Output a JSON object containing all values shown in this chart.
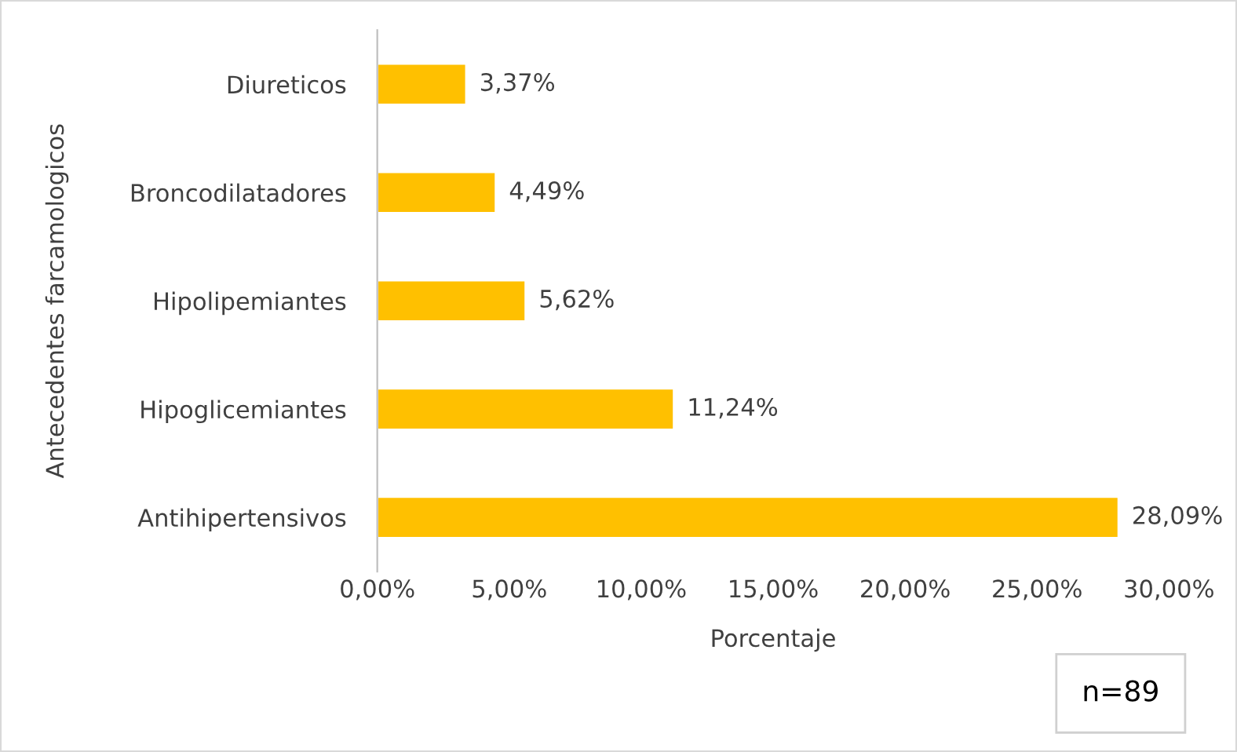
{
  "chart_data": {
    "type": "bar",
    "orientation": "horizontal",
    "categories": [
      "Diureticos",
      "Broncodilatadores",
      "Hipolipemiantes",
      "Hipoglicemiantes",
      "Antihipertensivos"
    ],
    "values": [
      3.37,
      4.49,
      5.62,
      11.24,
      28.09
    ],
    "value_labels": [
      "3,37%",
      "4,49%",
      "5,62%",
      "11,24%",
      "28,09%"
    ],
    "color": "#ffc000",
    "xlim": [
      0,
      30
    ],
    "xticks": [
      {
        "value": 0,
        "label": "0,00%"
      },
      {
        "value": 5,
        "label": "5,00%"
      },
      {
        "value": 10,
        "label": "10,00%"
      },
      {
        "value": 15,
        "label": "15,00%"
      },
      {
        "value": 20,
        "label": "20,00%"
      },
      {
        "value": 25,
        "label": "25,00%"
      },
      {
        "value": 30,
        "label": "30,00%"
      }
    ],
    "xlabel": "Porcentaje",
    "ylabel": "Antecedentes farcamologicos",
    "annotations": [
      "n=89"
    ],
    "grid": false,
    "legend": false
  }
}
